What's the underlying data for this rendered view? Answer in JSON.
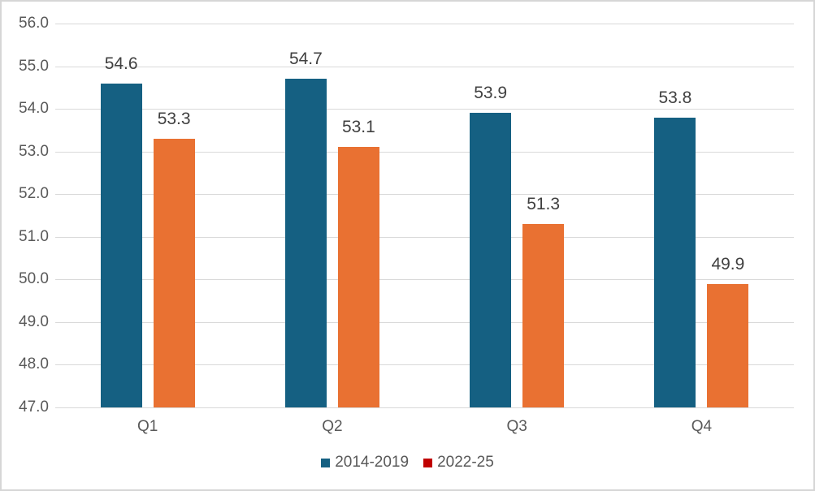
{
  "chart_data": {
    "type": "bar",
    "title": "",
    "xlabel": "",
    "ylabel": "",
    "categories": [
      "Q1",
      "Q2",
      "Q3",
      "Q4"
    ],
    "series": [
      {
        "name": "2014-2019",
        "values": [
          54.6,
          54.7,
          53.9,
          53.8
        ],
        "data_labels": [
          "54.6",
          "54.7",
          "53.9",
          "53.8"
        ],
        "bar_color": "#156082",
        "legend_marker_color": "#156082"
      },
      {
        "name": "2022-25",
        "values": [
          53.3,
          53.1,
          51.3,
          49.9
        ],
        "data_labels": [
          "53.3",
          "53.1",
          "51.3",
          "49.9"
        ],
        "bar_color": "#E97132",
        "legend_marker_color": "#C00000"
      }
    ],
    "ylim": [
      47.0,
      56.0
    ],
    "y_tick_step": 1.0,
    "y_tick_labels": [
      "56.0",
      "55.0",
      "54.0",
      "53.0",
      "52.0",
      "51.0",
      "50.0",
      "49.0",
      "48.0",
      "47.0"
    ],
    "grid": true,
    "legend_position": "bottom",
    "colors": {
      "gridline": "#D9D9D9",
      "axis_text": "#595959",
      "data_label_text": "#404040",
      "frame_border": "#D6D6D6",
      "background": "#FFFFFF"
    }
  }
}
